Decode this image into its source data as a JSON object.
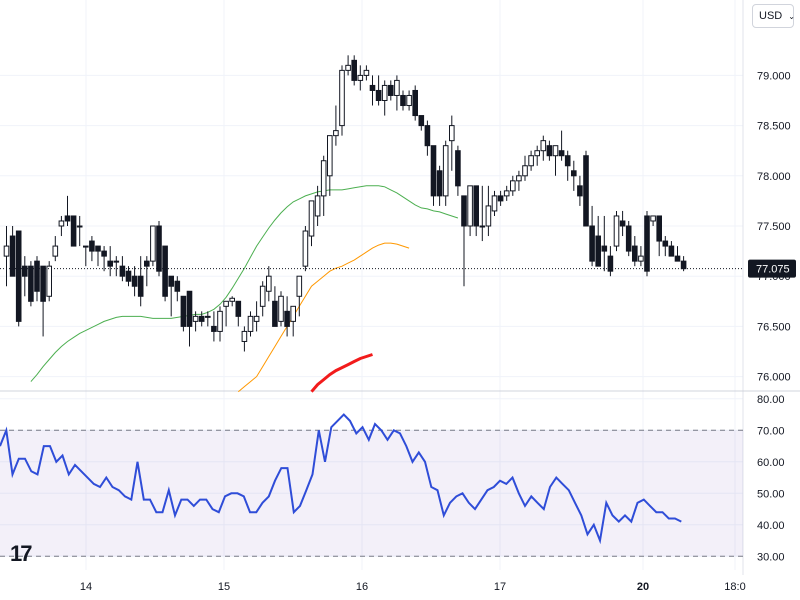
{
  "currency_select": {
    "label": "USD"
  },
  "chart_data": [
    {
      "type": "candlestick",
      "title": "",
      "ylim": [
        75.9,
        79.3
      ],
      "yticks": [
        "79.000",
        "78.500",
        "78.000",
        "77.500",
        "77.000",
        "76.500",
        "76.000"
      ],
      "ytick_values": [
        79.0,
        78.5,
        78.0,
        77.5,
        77.0,
        76.5,
        76.0
      ],
      "xticks": [
        "14",
        "15",
        "16",
        "17",
        "20",
        "18:0"
      ],
      "last_price_label": "77.075",
      "last_price": 77.075,
      "candles_ohlc": [
        [
          77.2,
          77.5,
          76.9,
          77.3
        ],
        [
          77.4,
          77.5,
          77.2,
          77.0
        ],
        [
          77.45,
          77.45,
          76.5,
          76.55
        ],
        [
          77.1,
          77.2,
          76.8,
          77.0
        ],
        [
          77.1,
          77.15,
          76.7,
          76.75
        ],
        [
          77.15,
          77.2,
          76.75,
          76.85
        ],
        [
          77.1,
          77.1,
          76.4,
          76.75
        ],
        [
          76.8,
          77.15,
          76.75,
          77.1
        ],
        [
          77.2,
          77.4,
          77.15,
          77.3
        ],
        [
          77.5,
          77.6,
          77.4,
          77.55
        ],
        [
          77.6,
          77.8,
          77.5,
          77.55
        ],
        [
          77.6,
          77.6,
          77.3,
          77.3
        ],
        [
          77.5,
          77.6,
          77.3,
          77.5
        ],
        [
          77.3,
          77.3,
          77.1,
          77.3
        ],
        [
          77.35,
          77.4,
          77.15,
          77.25
        ],
        [
          77.3,
          77.3,
          77.1,
          77.25
        ],
        [
          77.25,
          77.3,
          77.05,
          77.2
        ],
        [
          77.15,
          77.3,
          77.0,
          77.1
        ],
        [
          77.15,
          77.2,
          77.0,
          77.15
        ],
        [
          77.1,
          77.2,
          76.95,
          77.0
        ],
        [
          77.05,
          77.1,
          76.9,
          76.95
        ],
        [
          77.0,
          77.1,
          76.8,
          76.9
        ],
        [
          77.0,
          77.2,
          76.7,
          76.8
        ],
        [
          77.15,
          77.2,
          76.9,
          77.1
        ],
        [
          77.15,
          77.5,
          77.1,
          77.5
        ],
        [
          77.5,
          77.55,
          77.0,
          77.05
        ],
        [
          77.3,
          77.3,
          76.75,
          76.8
        ],
        [
          77.0,
          77.0,
          76.6,
          76.9
        ],
        [
          76.95,
          77.0,
          76.75,
          76.85
        ],
        [
          76.8,
          76.8,
          76.45,
          76.5
        ],
        [
          76.85,
          76.85,
          76.3,
          76.5
        ],
        [
          76.55,
          76.65,
          76.45,
          76.6
        ],
        [
          76.6,
          76.65,
          76.5,
          76.55
        ],
        [
          76.6,
          76.65,
          76.5,
          76.6
        ],
        [
          76.5,
          76.65,
          76.35,
          76.45
        ],
        [
          76.45,
          76.7,
          76.35,
          76.65
        ],
        [
          76.7,
          76.75,
          76.5,
          76.75
        ],
        [
          76.75,
          76.8,
          76.7,
          76.78
        ],
        [
          76.75,
          76.75,
          76.5,
          76.6
        ],
        [
          76.35,
          76.5,
          76.25,
          76.45
        ],
        [
          76.45,
          76.65,
          76.4,
          76.6
        ],
        [
          76.55,
          76.75,
          76.45,
          76.6
        ],
        [
          76.7,
          76.95,
          76.6,
          76.9
        ],
        [
          76.85,
          77.1,
          76.75,
          77.0
        ],
        [
          76.75,
          76.9,
          76.5,
          76.5
        ],
        [
          76.55,
          76.85,
          76.5,
          76.8
        ],
        [
          76.65,
          76.8,
          76.4,
          76.5
        ],
        [
          76.55,
          76.7,
          76.4,
          76.7
        ],
        [
          76.8,
          77.0,
          76.6,
          77.0
        ],
        [
          77.1,
          77.5,
          77.05,
          77.45
        ],
        [
          77.4,
          77.75,
          77.3,
          77.75
        ],
        [
          77.6,
          77.9,
          77.5,
          77.8
        ],
        [
          77.8,
          78.2,
          77.6,
          78.15
        ],
        [
          78.0,
          78.4,
          77.8,
          78.4
        ],
        [
          78.4,
          78.7,
          78.3,
          78.45
        ],
        [
          78.5,
          79.1,
          78.4,
          79.05
        ],
        [
          79.05,
          79.2,
          79.0,
          79.1
        ],
        [
          79.15,
          79.2,
          78.9,
          78.95
        ],
        [
          78.95,
          79.1,
          78.85,
          79.0
        ],
        [
          79.0,
          79.1,
          78.95,
          79.05
        ],
        [
          78.9,
          79.0,
          78.7,
          78.85
        ],
        [
          78.85,
          79.0,
          78.7,
          78.75
        ],
        [
          78.75,
          78.95,
          78.6,
          78.9
        ],
        [
          78.9,
          78.95,
          78.75,
          78.8
        ],
        [
          78.8,
          79.0,
          78.65,
          78.95
        ],
        [
          78.8,
          78.85,
          78.65,
          78.7
        ],
        [
          78.7,
          78.85,
          78.65,
          78.8
        ],
        [
          78.85,
          78.9,
          78.55,
          78.6
        ],
        [
          78.6,
          78.6,
          78.45,
          78.5
        ],
        [
          78.5,
          78.55,
          78.2,
          78.3
        ],
        [
          78.3,
          78.3,
          77.7,
          77.8
        ],
        [
          78.05,
          78.1,
          77.7,
          77.8
        ],
        [
          77.8,
          78.35,
          77.7,
          78.3
        ],
        [
          78.35,
          78.6,
          78.05,
          78.5
        ],
        [
          78.25,
          78.3,
          77.8,
          77.9
        ],
        [
          77.8,
          77.8,
          76.9,
          77.5
        ],
        [
          77.5,
          77.9,
          77.4,
          77.9
        ],
        [
          77.9,
          77.9,
          77.4,
          77.5
        ],
        [
          77.5,
          77.9,
          77.35,
          77.5
        ],
        [
          77.5,
          77.9,
          77.4,
          77.7
        ],
        [
          77.65,
          77.85,
          77.6,
          77.8
        ],
        [
          77.8,
          77.85,
          77.7,
          77.75
        ],
        [
          77.8,
          77.9,
          77.75,
          77.85
        ],
        [
          77.85,
          78.0,
          77.8,
          77.95
        ],
        [
          77.95,
          78.05,
          77.85,
          78.0
        ],
        [
          78.0,
          78.2,
          77.95,
          78.1
        ],
        [
          78.1,
          78.25,
          78.05,
          78.2
        ],
        [
          78.2,
          78.3,
          78.1,
          78.25
        ],
        [
          78.25,
          78.4,
          78.15,
          78.35
        ],
        [
          78.3,
          78.35,
          78.15,
          78.2
        ],
        [
          78.2,
          78.3,
          78.0,
          78.3
        ],
        [
          78.25,
          78.45,
          78.15,
          78.2
        ],
        [
          78.2,
          78.25,
          77.95,
          78.1
        ],
        [
          78.05,
          78.15,
          77.85,
          78.0
        ],
        [
          77.9,
          78.0,
          77.7,
          77.8
        ],
        [
          78.2,
          78.25,
          77.5,
          77.5
        ],
        [
          77.5,
          77.7,
          77.1,
          77.15
        ],
        [
          77.4,
          77.6,
          77.1,
          77.1
        ],
        [
          77.3,
          77.6,
          77.05,
          77.25
        ],
        [
          77.2,
          77.3,
          77.0,
          77.05
        ],
        [
          77.3,
          77.65,
          77.25,
          77.6
        ],
        [
          77.55,
          77.65,
          77.4,
          77.5
        ],
        [
          77.5,
          77.55,
          77.2,
          77.25
        ],
        [
          77.3,
          77.4,
          77.1,
          77.15
        ],
        [
          77.15,
          77.3,
          77.1,
          77.2
        ],
        [
          77.6,
          77.65,
          77.0,
          77.05
        ],
        [
          77.55,
          77.6,
          77.5,
          77.6
        ],
        [
          77.6,
          77.6,
          77.2,
          77.35
        ],
        [
          77.35,
          77.4,
          77.2,
          77.3
        ],
        [
          77.3,
          77.35,
          77.2,
          77.2
        ],
        [
          77.2,
          77.3,
          77.15,
          77.15
        ],
        [
          77.15,
          77.2,
          77.05,
          77.075
        ]
      ],
      "series": [
        {
          "name": "",
          "color": "#4caf50",
          "x_start_index": 4,
          "values": [
            75.95,
            76.02,
            76.1,
            76.17,
            76.24,
            76.3,
            76.35,
            76.39,
            76.43,
            76.46,
            76.49,
            76.52,
            76.55,
            76.57,
            76.59,
            76.6,
            76.6,
            76.6,
            76.6,
            76.59,
            76.58,
            76.58,
            76.58,
            76.58,
            76.59,
            76.6,
            76.61,
            76.62,
            76.62,
            76.64,
            76.67,
            76.72,
            76.79,
            76.88,
            76.98,
            77.08,
            77.19,
            77.3,
            77.39,
            77.48,
            77.56,
            77.63,
            77.69,
            77.74,
            77.77,
            77.8,
            77.82,
            77.84,
            77.85,
            77.86,
            77.86,
            77.86,
            77.87,
            77.88,
            77.89,
            77.9,
            77.9,
            77.9,
            77.89,
            77.86,
            77.83,
            77.79,
            77.75,
            77.71,
            77.68,
            77.67,
            77.65,
            77.64,
            77.62,
            77.6,
            77.58
          ]
        },
        {
          "name": "",
          "color": "#ff9800",
          "x_start_index": 38,
          "values": [
            75.85,
            75.9,
            75.95,
            76.0,
            76.1,
            76.2,
            76.3,
            76.4,
            76.5,
            76.6,
            76.7,
            76.8,
            76.9,
            76.95,
            77.0,
            77.05,
            77.08,
            77.1,
            77.13,
            77.16,
            77.2,
            77.24,
            77.28,
            77.31,
            77.33,
            77.33,
            77.32,
            77.3,
            77.28
          ]
        },
        {
          "name": "",
          "color": "#f21b1b",
          "x_start_index": 50,
          "values": [
            75.85,
            75.92,
            75.97,
            76.02,
            76.06,
            76.09,
            76.12,
            76.15,
            76.18,
            76.2,
            76.22
          ]
        }
      ]
    },
    {
      "type": "line",
      "title": "",
      "ylim": [
        27,
        82
      ],
      "yticks": [
        "80.00",
        "70.00",
        "60.00",
        "50.00",
        "40.00",
        "30.00"
      ],
      "ytick_values": [
        80,
        70,
        60,
        50,
        40,
        30
      ],
      "bands": {
        "upper": 70,
        "lower": 30
      },
      "series": [
        {
          "name": "",
          "color": "#2f4dd8",
          "values": [
            65,
            70,
            56,
            61,
            61,
            57,
            56,
            65,
            65,
            60,
            62,
            56,
            59,
            57,
            55,
            53,
            52,
            55,
            52,
            51,
            49,
            48,
            60,
            48,
            48,
            44,
            44,
            51,
            43,
            48,
            48,
            46,
            48,
            48,
            45,
            44,
            49,
            50,
            50,
            49,
            44,
            44,
            47,
            49,
            54,
            58,
            58,
            44,
            46,
            51,
            56,
            70,
            60,
            71,
            73,
            75,
            73,
            69,
            71,
            67,
            72,
            70,
            67,
            70,
            69,
            65,
            60,
            63,
            60,
            52,
            51,
            43,
            47,
            49,
            50,
            47,
            45,
            48,
            51,
            52,
            54,
            53,
            55,
            50,
            46,
            49,
            47,
            45,
            52,
            55,
            53,
            51,
            47,
            43,
            37,
            40,
            35,
            47,
            43,
            41,
            43,
            41,
            47,
            48,
            46,
            44,
            44,
            42,
            42,
            41
          ]
        }
      ]
    }
  ]
}
